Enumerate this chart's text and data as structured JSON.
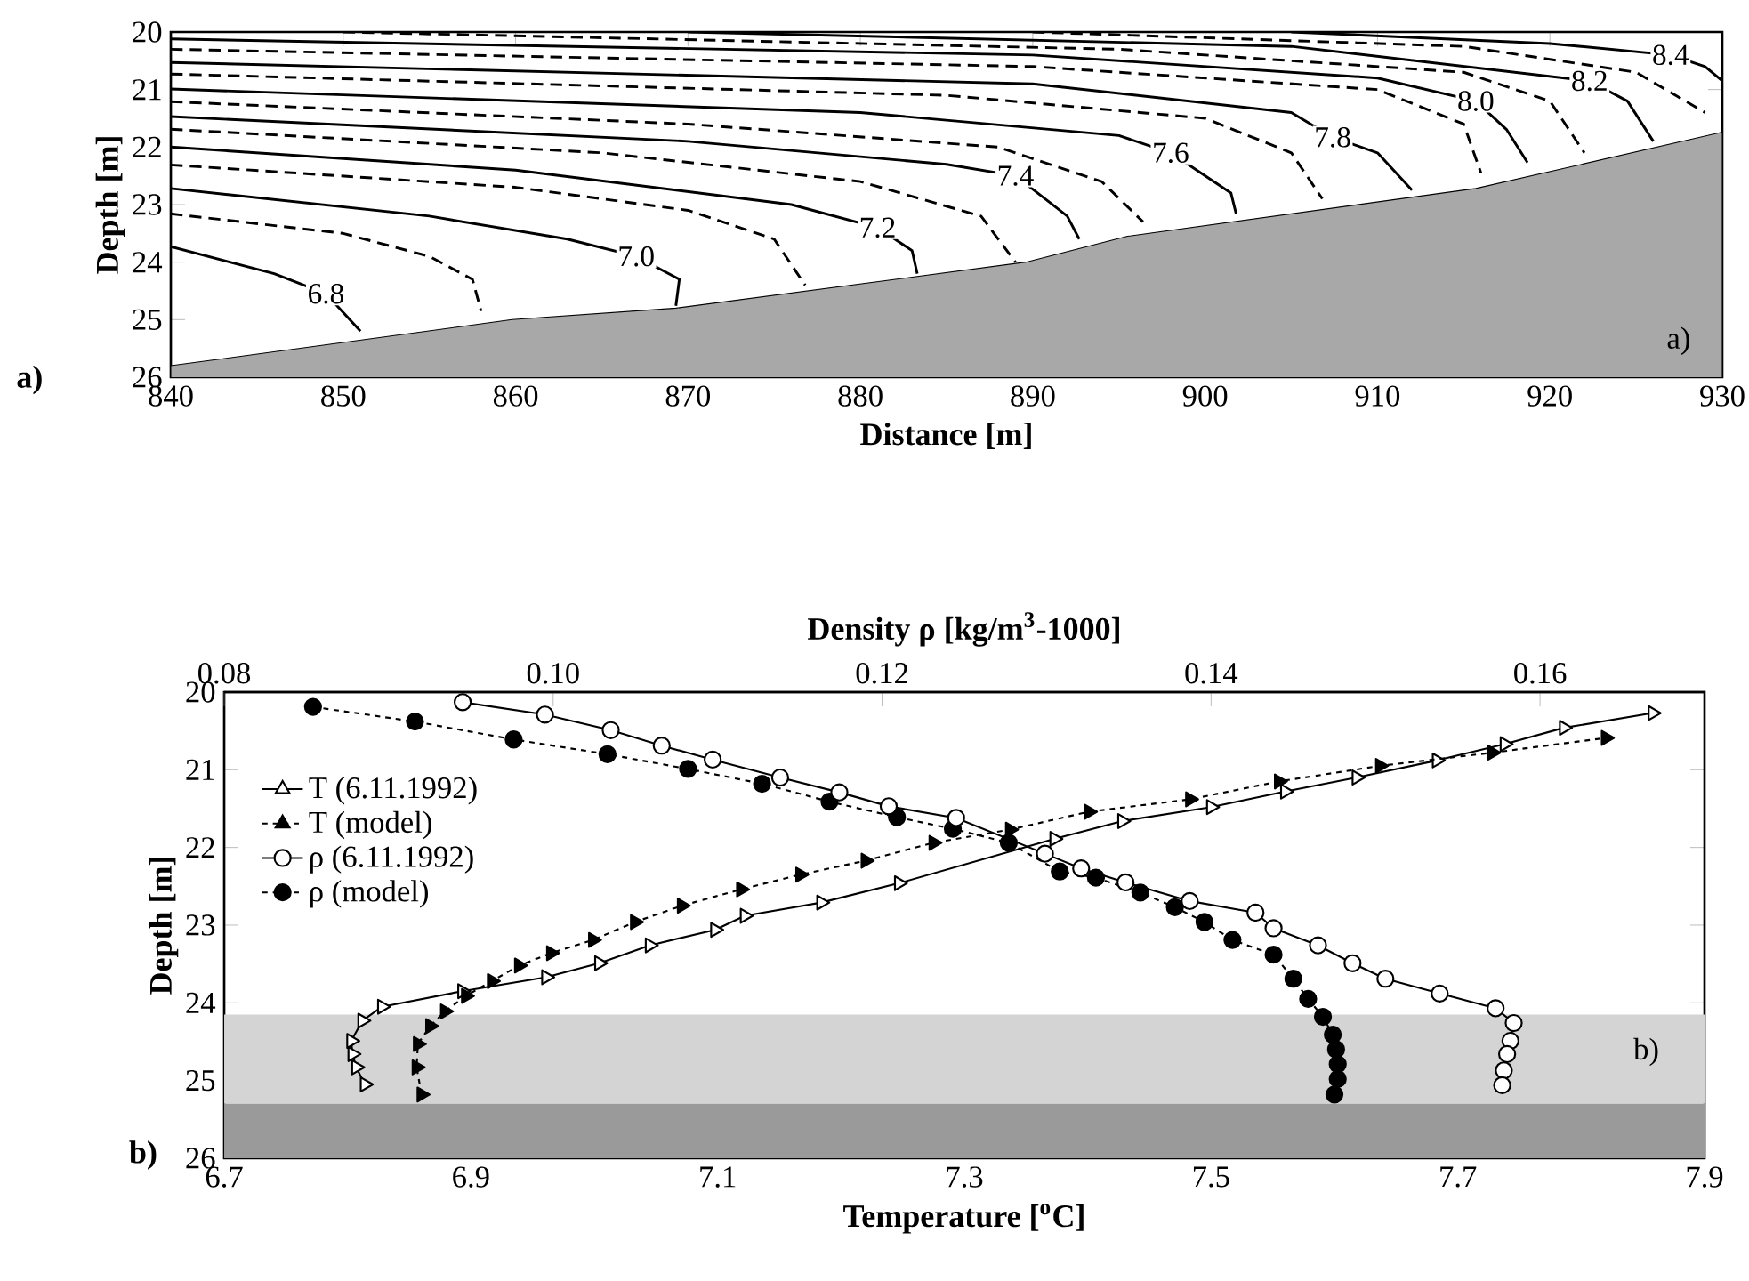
{
  "chart_data": [
    {
      "type": "line",
      "xlabel": "Distance [m]",
      "ylabel": "Depth [m]",
      "xlim": [
        840,
        930
      ],
      "ylim": [
        26,
        20
      ],
      "xticks": [
        840,
        850,
        860,
        870,
        880,
        890,
        900,
        910,
        920,
        930
      ],
      "yticks": [
        20,
        21,
        22,
        23,
        24,
        25,
        26
      ],
      "annotations": [
        "a)",
        "a)"
      ],
      "series": [
        {
          "type": "area",
          "color": "#a8a8a8",
          "x": [
            840,
            859.8,
            869.3,
            889.6,
            895.5,
            915.7,
            930
          ],
          "values": [
            25.8,
            25.0,
            24.8,
            24.0,
            23.55,
            22.72,
            21.74
          ]
        },
        {
          "name": "6.8",
          "color": "#000000",
          "line_style": "solid",
          "x": [
            840,
            846,
            849,
            851
          ],
          "values": [
            23.73,
            24.2,
            24.55,
            25.2
          ]
        },
        {
          "color": "#000000",
          "line_style": "dashed",
          "x": [
            840,
            850,
            855,
            857.5,
            858
          ],
          "values": [
            23.16,
            23.5,
            23.9,
            24.3,
            24.85
          ]
        },
        {
          "name": "7.0",
          "color": "#000000",
          "line_style": "solid",
          "x": [
            840,
            855,
            863,
            867,
            869.5,
            869.3
          ],
          "values": [
            22.72,
            23.2,
            23.6,
            23.9,
            24.3,
            24.76
          ]
        },
        {
          "color": "#000000",
          "line_style": "dashed",
          "x": [
            840,
            860,
            870,
            875,
            876.8
          ],
          "values": [
            22.31,
            22.7,
            23.1,
            23.6,
            24.4
          ]
        },
        {
          "name": "7.2",
          "color": "#000000",
          "line_style": "solid",
          "x": [
            840,
            860,
            876,
            881,
            883,
            883.3
          ],
          "values": [
            22.0,
            22.4,
            23.0,
            23.4,
            23.8,
            24.2
          ]
        },
        {
          "color": "#000000",
          "line_style": "dashed",
          "x": [
            840,
            865,
            880,
            887,
            889
          ],
          "values": [
            21.69,
            22.1,
            22.6,
            23.2,
            24.0
          ]
        },
        {
          "name": "7.4",
          "color": "#000000",
          "line_style": "solid",
          "x": [
            840,
            870,
            885,
            889,
            892,
            892.7
          ],
          "values": [
            21.47,
            21.9,
            22.3,
            22.5,
            23.2,
            23.6
          ]
        },
        {
          "color": "#000000",
          "line_style": "dashed",
          "x": [
            840,
            870,
            888,
            894,
            896.4
          ],
          "values": [
            21.21,
            21.6,
            22.0,
            22.6,
            23.3
          ]
        },
        {
          "name": "7.6",
          "color": "#000000",
          "line_style": "solid",
          "x": [
            840,
            880,
            895,
            898,
            901.5,
            901.8
          ],
          "values": [
            20.99,
            21.4,
            21.8,
            22.1,
            22.8,
            23.16
          ]
        },
        {
          "color": "#000000",
          "line_style": "dashed",
          "x": [
            840,
            885,
            900,
            905,
            906.8
          ],
          "values": [
            20.73,
            21.1,
            21.5,
            22.1,
            22.9
          ]
        },
        {
          "name": "7.8",
          "color": "#000000",
          "line_style": "solid",
          "x": [
            840,
            890,
            905,
            907.4,
            910,
            912
          ],
          "values": [
            20.53,
            20.9,
            21.4,
            21.83,
            22.1,
            22.75
          ]
        },
        {
          "color": "#000000",
          "line_style": "dashed",
          "x": [
            840,
            890,
            910,
            915,
            916
          ],
          "values": [
            20.3,
            20.6,
            21.0,
            21.6,
            22.45
          ]
        },
        {
          "name": "8.0",
          "color": "#000000",
          "line_style": "solid",
          "x": [
            840,
            890,
            910,
            915.7,
            917.5,
            918.7
          ],
          "values": [
            20.12,
            20.4,
            20.8,
            21.2,
            21.7,
            22.27
          ]
        },
        {
          "color": "#000000",
          "line_style": "dashed",
          "x": [
            850,
            895,
            915,
            920,
            922
          ],
          "values": [
            20.0,
            20.3,
            20.7,
            21.2,
            22.1
          ]
        },
        {
          "name": "8.2",
          "color": "#000000",
          "line_style": "solid",
          "x": [
            870,
            905,
            922.3,
            924.5,
            926
          ],
          "values": [
            20.0,
            20.25,
            20.85,
            21.2,
            21.9
          ]
        },
        {
          "color": "#000000",
          "line_style": "dashed",
          "x": [
            890,
            915,
            925,
            929
          ],
          "values": [
            20.0,
            20.25,
            20.7,
            21.4
          ]
        },
        {
          "name": "8.4",
          "color": "#000000",
          "line_style": "solid",
          "x": [
            905,
            920,
            927,
            929,
            930
          ],
          "values": [
            20.0,
            20.2,
            20.4,
            20.6,
            20.85
          ]
        }
      ]
    },
    {
      "type": "line",
      "xlabel": "Temperature [$^{o}$C]",
      "x2label": "Density ρ  [kg/m$^{3}$-1000]",
      "ylabel": "Depth [m]",
      "xlim": [
        6.7,
        7.9
      ],
      "x2lim": [
        0.08,
        0.17
      ],
      "ylim": [
        26,
        20
      ],
      "xticks": [
        6.7,
        6.9,
        7.1,
        7.3,
        7.5,
        7.7,
        7.9
      ],
      "x2ticks": [
        {
          "value": 0.08,
          "label": "0.08"
        },
        {
          "value": 0.1,
          "label": "0.10"
        },
        {
          "value": 0.12,
          "label": "0.12"
        },
        {
          "value": 0.14,
          "label": "0.14"
        },
        {
          "value": 0.16,
          "label": "0.16"
        }
      ],
      "yticks": [
        20,
        21,
        22,
        23,
        24,
        25,
        26
      ],
      "legend": "top left",
      "annotations": [
        "b)",
        "b)"
      ],
      "bands": [
        {
          "axis": "y",
          "from": 24.15,
          "to": 25.3,
          "color": "#d4d4d4"
        },
        {
          "axis": "y",
          "from": 25.3,
          "to": 26,
          "color": "#9a9a9a"
        }
      ],
      "series": [
        {
          "name": "T   (6.11.1992)",
          "color": "#000000",
          "marker": "triangle",
          "line_style": "solid",
          "x": [
            6.814,
            6.807,
            6.804,
            6.803,
            6.812,
            6.828,
            6.893,
            6.961,
            7.004,
            7.045,
            7.098,
            7.122,
            7.184,
            7.247,
            7.373,
            7.428,
            7.5,
            7.56,
            7.618,
            7.683,
            7.738,
            7.786,
            7.858
          ],
          "values": [
            25.05,
            24.83,
            24.66,
            24.49,
            24.23,
            24.05,
            23.85,
            23.67,
            23.49,
            23.26,
            23.06,
            22.88,
            22.71,
            22.46,
            21.89,
            21.66,
            21.48,
            21.28,
            21.1,
            20.88,
            20.67,
            20.46,
            20.27
          ]
        },
        {
          "name": "T   (model)",
          "color": "#000000",
          "marker": "triangle",
          "line_style": "dotted",
          "x": [
            6.86,
            6.856,
            6.857,
            6.867,
            6.879,
            6.896,
            6.917,
            6.939,
            6.965,
            6.999,
            7.033,
            7.071,
            7.119,
            7.167,
            7.22,
            7.275,
            7.337,
            7.401,
            7.483,
            7.555,
            7.637,
            7.728,
            7.82
          ],
          "values": [
            25.18,
            24.83,
            24.53,
            24.3,
            24.11,
            23.91,
            23.72,
            23.52,
            23.36,
            23.19,
            22.96,
            22.75,
            22.54,
            22.35,
            22.17,
            21.94,
            21.77,
            21.54,
            21.38,
            21.15,
            20.95,
            20.78,
            20.59
          ]
        },
        {
          "name": "ρ   (6.11.1992)",
          "color": "#000000",
          "marker": "circle",
          "line_style": "solid",
          "axis": "x2",
          "x": [
            0.0945,
            0.0995,
            0.1035,
            0.1066,
            0.1097,
            0.1138,
            0.1174,
            0.1204,
            0.1245,
            0.1299,
            0.1321,
            0.1348,
            0.1387,
            0.1427,
            0.1438,
            0.1465,
            0.1486,
            0.1506,
            0.1539,
            0.1573,
            0.1584,
            0.1582,
            0.158,
            0.1578,
            0.1577
          ],
          "values": [
            20.13,
            20.29,
            20.49,
            20.69,
            20.87,
            21.1,
            21.29,
            21.47,
            21.62,
            22.08,
            22.27,
            22.45,
            22.69,
            22.84,
            23.04,
            23.26,
            23.49,
            23.69,
            23.88,
            24.07,
            24.26,
            24.49,
            24.66,
            24.87,
            25.06
          ]
        },
        {
          "name": "ρ   (model)",
          "color": "#000000",
          "marker": "circle",
          "line_style": "dotted",
          "axis": "x2",
          "x": [
            0.0854,
            0.0916,
            0.0976,
            0.1033,
            0.1082,
            0.1127,
            0.1168,
            0.1209,
            0.1243,
            0.1277,
            0.1308,
            0.133,
            0.1357,
            0.1378,
            0.1396,
            0.1413,
            0.1438,
            0.145,
            0.1459,
            0.1468,
            0.1474,
            0.1476,
            0.1477,
            0.1477,
            0.1475
          ],
          "values": [
            20.19,
            20.38,
            20.61,
            20.8,
            20.99,
            21.18,
            21.41,
            21.61,
            21.76,
            21.94,
            22.31,
            22.39,
            22.58,
            22.77,
            22.96,
            23.19,
            23.38,
            23.69,
            23.95,
            24.18,
            24.41,
            24.6,
            24.79,
            24.98,
            25.18
          ]
        }
      ]
    }
  ]
}
